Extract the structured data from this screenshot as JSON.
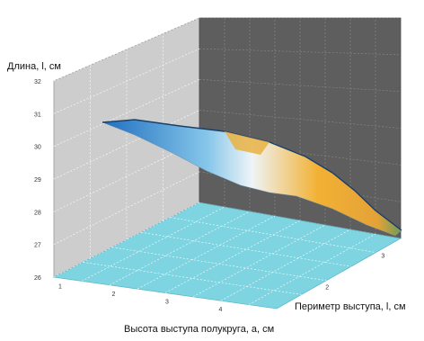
{
  "chart_data": {
    "type": "surface",
    "zlabel": "Длина, l, см",
    "xlabel": "Высота выступа полукруга, a, см",
    "ylabel": "Периметр выступа, l, см",
    "z_ticks": [
      "26",
      "27",
      "28",
      "29",
      "30",
      "31",
      "32"
    ],
    "x_ticks": [
      "1",
      "2",
      "3",
      "4"
    ],
    "y_ticks": [
      "2",
      "3"
    ],
    "zlim": [
      26,
      32
    ],
    "colors": {
      "left_wall": "#cdcdcd",
      "back_wall": "#5e5e5e",
      "floor": "#7fd4e2",
      "surface_low": "#1f6fbf",
      "surface_mid": "#eef4f7",
      "surface_high": "#f2b134",
      "surface_edge": "#6c9a5b"
    }
  }
}
